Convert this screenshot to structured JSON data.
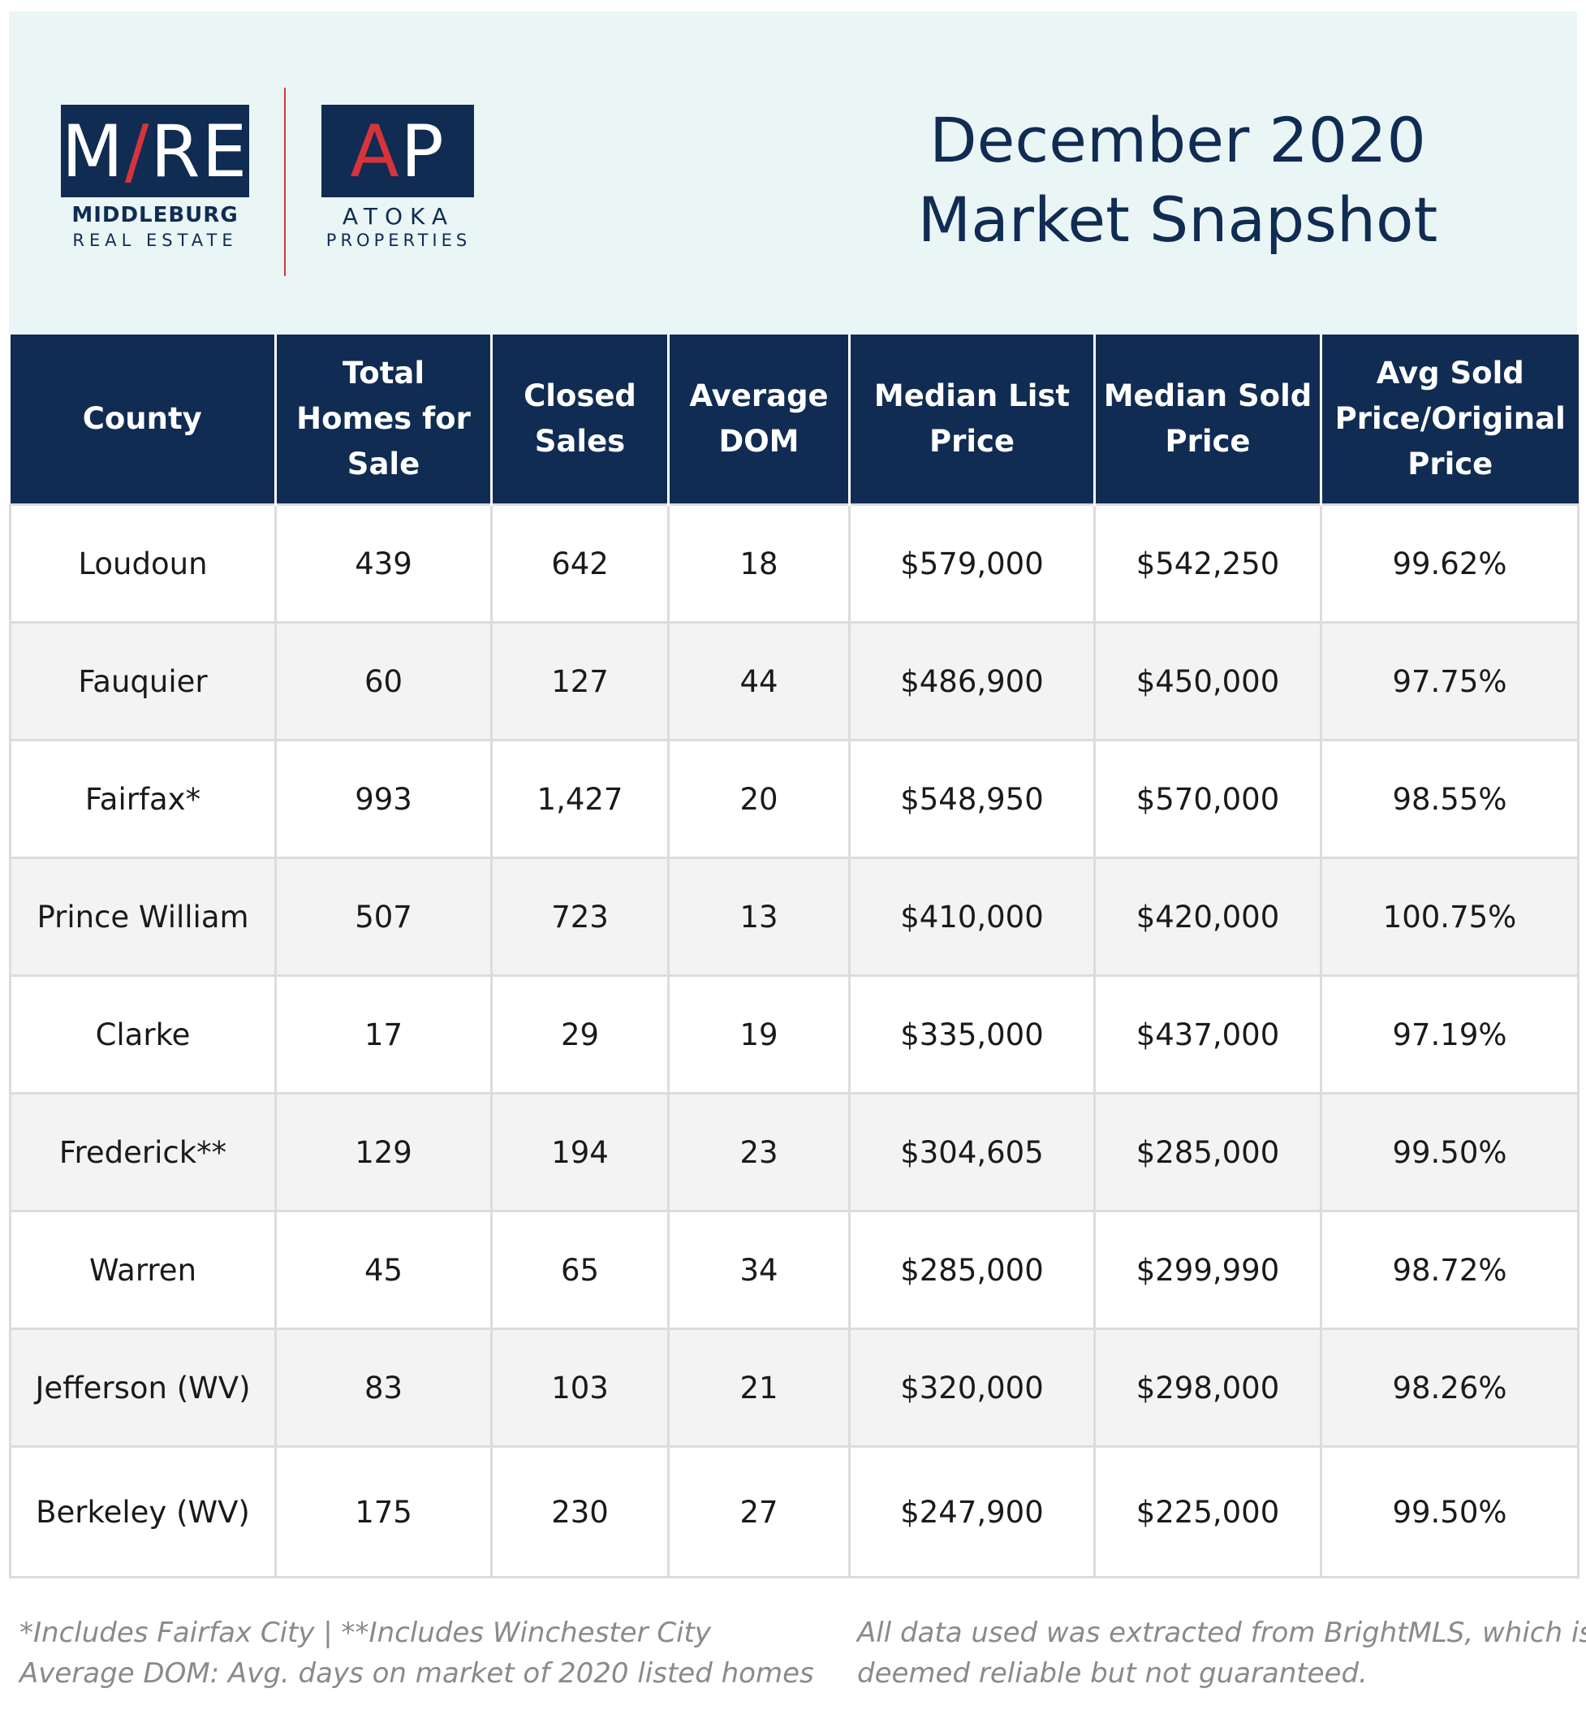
{
  "header": {
    "mre_logo": {
      "prefix": "M",
      "accent": "/",
      "suffix": "RE"
    },
    "mre_sub_1": "MIDDLEBURG",
    "mre_sub_2": "REAL ESTATE",
    "ap_logo": {
      "accent": "A",
      "suffix": "P"
    },
    "ap_sub_1": "ATOKA",
    "ap_sub_2": "PROPERTIES",
    "title_line_1": "December 2020",
    "title_line_2": "Market Snapshot"
  },
  "colors": {
    "navy": "#102c53",
    "accent_red": "#d6333b",
    "header_band": "#eaf6f6",
    "row_alt": "#f3f3f3"
  },
  "table": {
    "columns": [
      "County",
      "Total Homes for Sale",
      "Closed Sales",
      "Average DOM",
      "Median List Price",
      "Median Sold Price",
      "Avg Sold Price/Original Price"
    ],
    "rows": [
      [
        "Loudoun",
        "439",
        "642",
        "18",
        "$579,000",
        "$542,250",
        "99.62%"
      ],
      [
        "Fauquier",
        "60",
        "127",
        "44",
        "$486,900",
        "$450,000",
        "97.75%"
      ],
      [
        "Fairfax*",
        "993",
        "1,427",
        "20",
        "$548,950",
        "$570,000",
        "98.55%"
      ],
      [
        "Prince William",
        "507",
        "723",
        "13",
        "$410,000",
        "$420,000",
        "100.75%"
      ],
      [
        "Clarke",
        "17",
        "29",
        "19",
        "$335,000",
        "$437,000",
        "97.19%"
      ],
      [
        "Frederick**",
        "129",
        "194",
        "23",
        "$304,605",
        "$285,000",
        "99.50%"
      ],
      [
        "Warren",
        "45",
        "65",
        "34",
        "$285,000",
        "$299,990",
        "98.72%"
      ],
      [
        "Jefferson (WV)",
        "83",
        "103",
        "21",
        "$320,000",
        "$298,000",
        "98.26%"
      ],
      [
        "Berkeley (WV)",
        "175",
        "230",
        "27",
        "$247,900",
        "$225,000",
        "99.50%"
      ]
    ]
  },
  "footer": {
    "left_line_1": "*Includes Fairfax City | **Includes Winchester City",
    "left_line_2": "Average DOM: Avg. days on market of 2020 listed homes",
    "right_line_1": "All data used was extracted from BrightMLS, which is",
    "right_line_2": "deemed reliable but not guaranteed."
  }
}
